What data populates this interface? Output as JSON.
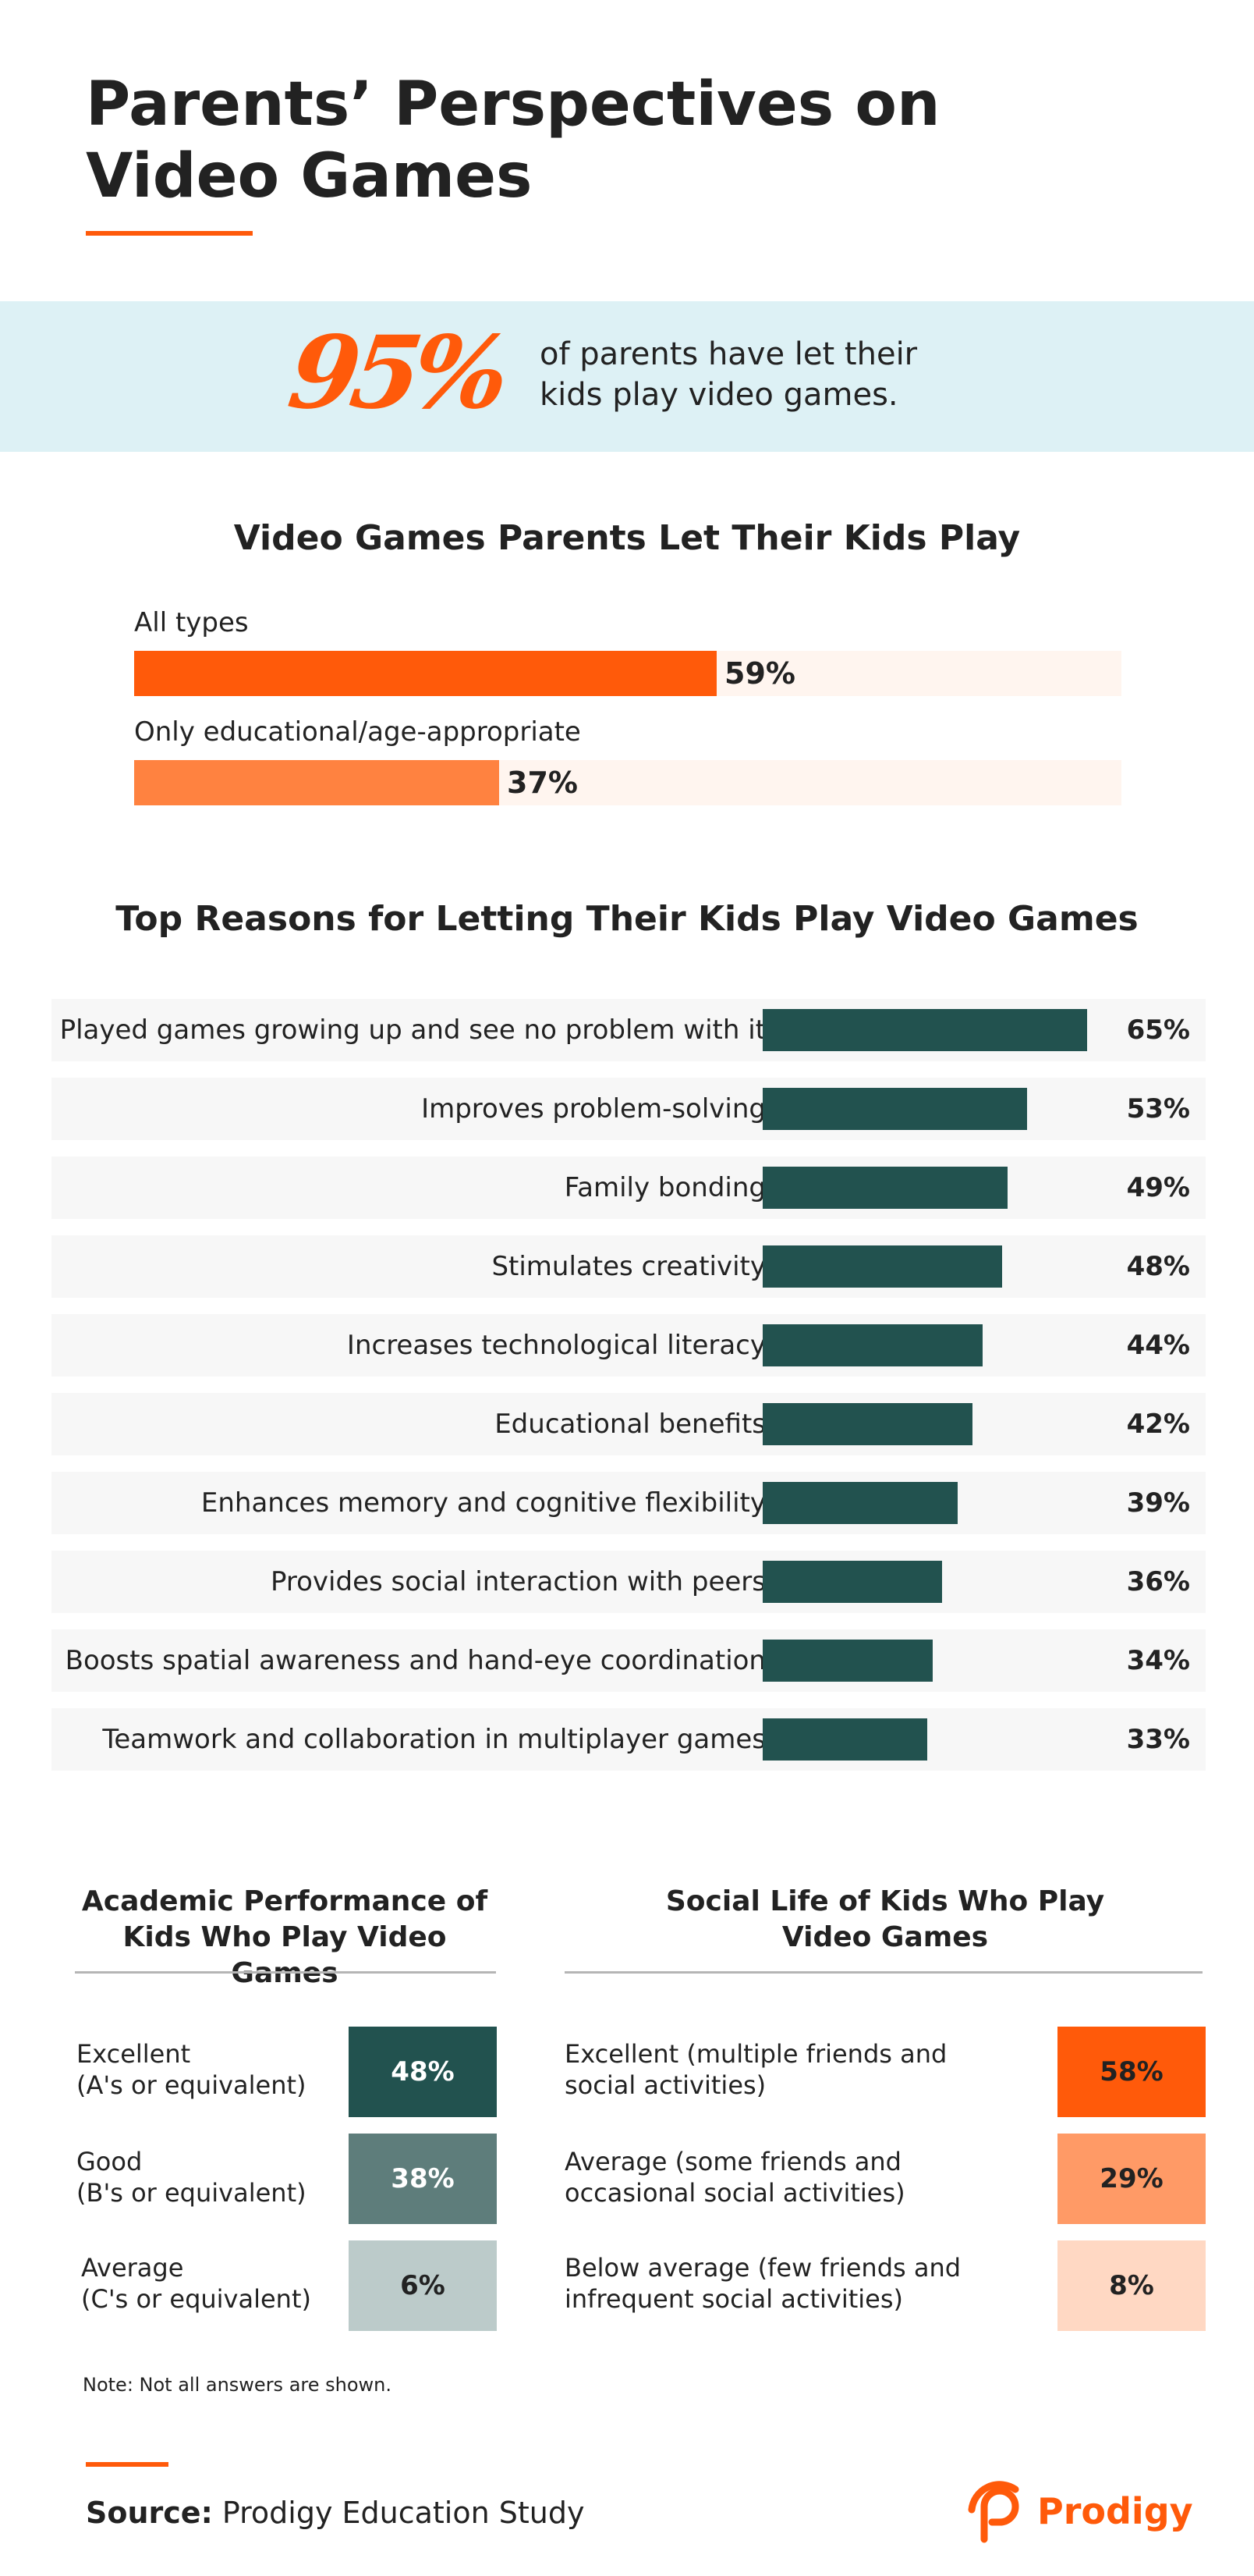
{
  "header": {
    "title_line1": "Parents’ Perspectives on",
    "title_line2": "Video Games"
  },
  "callout": {
    "stat": "95%",
    "text_line1": "of parents have let their",
    "text_line2": "kids play video games."
  },
  "colors": {
    "accent": "#FF5A0A",
    "accent_light": "#FF8240",
    "teal_dark": "#22524F",
    "callout_bg": "#DDF1F5",
    "track": "#FFF5EF",
    "row_bg": "#F7F7F7"
  },
  "chart_data": [
    {
      "type": "bar",
      "title": "Video Games Parents Let Their Kids Play",
      "categories": [
        "All types",
        "Only educational/age-appropriate"
      ],
      "values": [
        59,
        37
      ],
      "value_labels": [
        "59%",
        "37%"
      ],
      "ylim": [
        0,
        100
      ],
      "colors": [
        "#FF5A0A",
        "#FF8240"
      ]
    },
    {
      "type": "bar",
      "title": "Top Reasons for Letting Their Kids Play Video Games",
      "categories": [
        "Played games growing up and see no problem with it",
        "Improves problem-solving",
        "Family bonding",
        "Stimulates creativity",
        "Increases technological literacy",
        "Educational benefits",
        "Enhances memory and cognitive flexibility",
        "Provides social interaction with peers",
        "Boosts spatial awareness and hand-eye coordination",
        "Teamwork and collaboration in multiplayer games"
      ],
      "values": [
        65,
        53,
        49,
        48,
        44,
        42,
        39,
        36,
        34,
        33
      ],
      "value_labels": [
        "65%",
        "53%",
        "49%",
        "48%",
        "44%",
        "42%",
        "39%",
        "36%",
        "34%",
        "33%"
      ],
      "xlim": [
        0,
        75
      ]
    },
    {
      "type": "table",
      "title_line1": "Academic Performance of",
      "title_line2": "Kids Who Play Video Games",
      "rows": [
        {
          "label_line1": "Excellent",
          "label_line2": "(A's or equivalent)",
          "value": "48%",
          "bg": "#22524F",
          "fg": "#FFFFFF"
        },
        {
          "label_line1": "Good",
          "label_line2": "(B's or equivalent)",
          "value": "38%",
          "bg": "#5E7D7B",
          "fg": "#FFFFFF"
        },
        {
          "label_line1": "Average",
          "label_line2": "(C's or equivalent)",
          "value": "6%",
          "bg": "#BCCBCA",
          "fg": "#222222"
        }
      ]
    },
    {
      "type": "table",
      "title_line1": "Social Life of Kids Who Play",
      "title_line2": "Video Games",
      "rows": [
        {
          "label_line1": "Excellent (multiple friends and",
          "label_line2": "social activities)",
          "value": "58%",
          "bg": "#FF5A0A",
          "fg": "#222222"
        },
        {
          "label_line1": "Average (some friends and",
          "label_line2": "occasional social activities)",
          "value": "29%",
          "bg": "#FF9A66",
          "fg": "#222222"
        },
        {
          "label_line1": "Below average (few friends and",
          "label_line2": "infrequent social activities)",
          "value": "8%",
          "bg": "#FFD8C3",
          "fg": "#222222"
        }
      ]
    }
  ],
  "note": "Note: Not all answers are shown.",
  "footer": {
    "source_label": "Source:",
    "source_text": "Prodigy Education Study",
    "brand": "Prodigy",
    "brand_icon": "prodigy-logo-icon"
  }
}
